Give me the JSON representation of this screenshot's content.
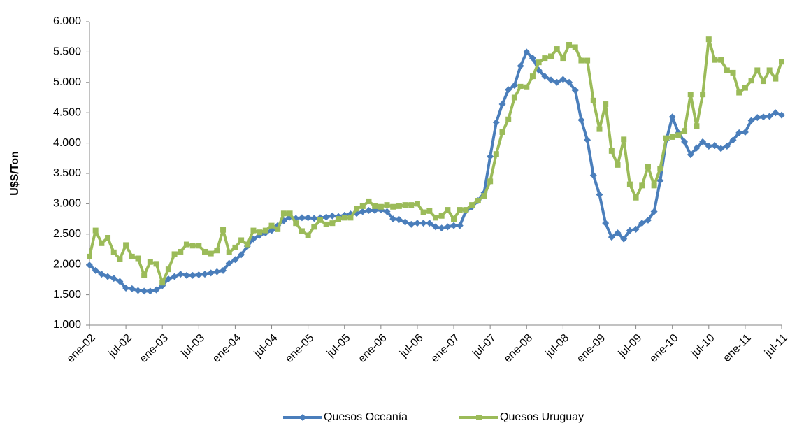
{
  "chart_data": {
    "type": "line",
    "y_label": "U$S/Ton",
    "categories": [
      "ene-02",
      null,
      null,
      null,
      null,
      null,
      "jul-02",
      null,
      null,
      null,
      null,
      null,
      "ene-03",
      null,
      null,
      null,
      null,
      null,
      "jul-03",
      null,
      null,
      null,
      null,
      null,
      "ene-04",
      null,
      null,
      null,
      null,
      null,
      "jul-04",
      null,
      null,
      null,
      null,
      null,
      "ene-05",
      null,
      null,
      null,
      null,
      null,
      "jul-05",
      null,
      null,
      null,
      null,
      null,
      "ene-06",
      null,
      null,
      null,
      null,
      null,
      "jul-06",
      null,
      null,
      null,
      null,
      null,
      "ene-07",
      null,
      null,
      null,
      null,
      null,
      "jul-07",
      null,
      null,
      null,
      null,
      null,
      "ene-08",
      null,
      null,
      null,
      null,
      null,
      "jul-08",
      null,
      null,
      null,
      null,
      null,
      "ene-09",
      null,
      null,
      null,
      null,
      null,
      "jul-09",
      null,
      null,
      null,
      null,
      null,
      "ene-10",
      null,
      null,
      null,
      null,
      null,
      "jul-10",
      null,
      null,
      null,
      null,
      null,
      "ene-11",
      null,
      null,
      null,
      null,
      null,
      "jul-11"
    ],
    "series": [
      {
        "name": "Quesos Oceanía",
        "color": "#4a7ebb",
        "marker": "diamond",
        "values": [
          1990,
          1900,
          1840,
          1800,
          1770,
          1720,
          1610,
          1600,
          1570,
          1560,
          1560,
          1580,
          1650,
          1760,
          1800,
          1840,
          1820,
          1820,
          1830,
          1840,
          1860,
          1880,
          1900,
          2020,
          2080,
          2160,
          2300,
          2420,
          2480,
          2520,
          2560,
          2640,
          2720,
          2780,
          2760,
          2770,
          2770,
          2760,
          2770,
          2780,
          2800,
          2790,
          2810,
          2830,
          2840,
          2870,
          2890,
          2890,
          2900,
          2870,
          2750,
          2740,
          2700,
          2660,
          2680,
          2680,
          2680,
          2620,
          2600,
          2620,
          2640,
          2640,
          2880,
          2950,
          3050,
          3180,
          3780,
          4340,
          4640,
          4880,
          4950,
          5270,
          5500,
          5400,
          5200,
          5100,
          5040,
          5000,
          5050,
          5000,
          4870,
          4380,
          4050,
          3470,
          3150,
          2680,
          2450,
          2520,
          2420,
          2560,
          2580,
          2680,
          2730,
          2870,
          3380,
          4050,
          4430,
          4170,
          4020,
          3810,
          3920,
          4020,
          3950,
          3960,
          3910,
          3950,
          4050,
          4170,
          4180,
          4370,
          4420,
          4430,
          4440,
          4500,
          4460
        ]
      },
      {
        "name": "Quesos Uruguay",
        "color": "#9bbb59",
        "marker": "square",
        "values": [
          2130,
          2560,
          2350,
          2440,
          2200,
          2090,
          2320,
          2130,
          2100,
          1820,
          2040,
          2010,
          1700,
          1920,
          2170,
          2210,
          2330,
          2310,
          2310,
          2210,
          2180,
          2230,
          2570,
          2200,
          2280,
          2400,
          2330,
          2560,
          2530,
          2560,
          2640,
          2580,
          2840,
          2840,
          2680,
          2550,
          2480,
          2620,
          2730,
          2660,
          2680,
          2750,
          2770,
          2770,
          2920,
          2960,
          3040,
          2960,
          2950,
          2980,
          2950,
          2960,
          2980,
          2980,
          3000,
          2860,
          2880,
          2770,
          2800,
          2900,
          2750,
          2900,
          2900,
          2980,
          3050,
          3130,
          3370,
          3820,
          4180,
          4390,
          4750,
          4930,
          4920,
          5100,
          5330,
          5400,
          5430,
          5550,
          5400,
          5620,
          5580,
          5360,
          5360,
          4700,
          4230,
          4640,
          3870,
          3640,
          4060,
          3320,
          3100,
          3300,
          3610,
          3300,
          3580,
          4080,
          4100,
          4130,
          4200,
          4800,
          4280,
          4800,
          5710,
          5370,
          5370,
          5200,
          5160,
          4830,
          4910,
          5030,
          5200,
          5020,
          5200,
          5060,
          5340
        ]
      }
    ],
    "ylim": [
      1000,
      6000
    ],
    "yticks": [
      {
        "value": 1000,
        "label": "1.000"
      },
      {
        "value": 1500,
        "label": "1.500"
      },
      {
        "value": 2000,
        "label": "2.000"
      },
      {
        "value": 2500,
        "label": "2.500"
      },
      {
        "value": 3000,
        "label": "3.000"
      },
      {
        "value": 3500,
        "label": "3.500"
      },
      {
        "value": 4000,
        "label": "4.000"
      },
      {
        "value": 4500,
        "label": "4.500"
      },
      {
        "value": 5000,
        "label": "5.000"
      },
      {
        "value": 5500,
        "label": "5.500"
      },
      {
        "value": 6000,
        "label": "6.000"
      }
    ],
    "grid": false,
    "legend": "bottom"
  }
}
